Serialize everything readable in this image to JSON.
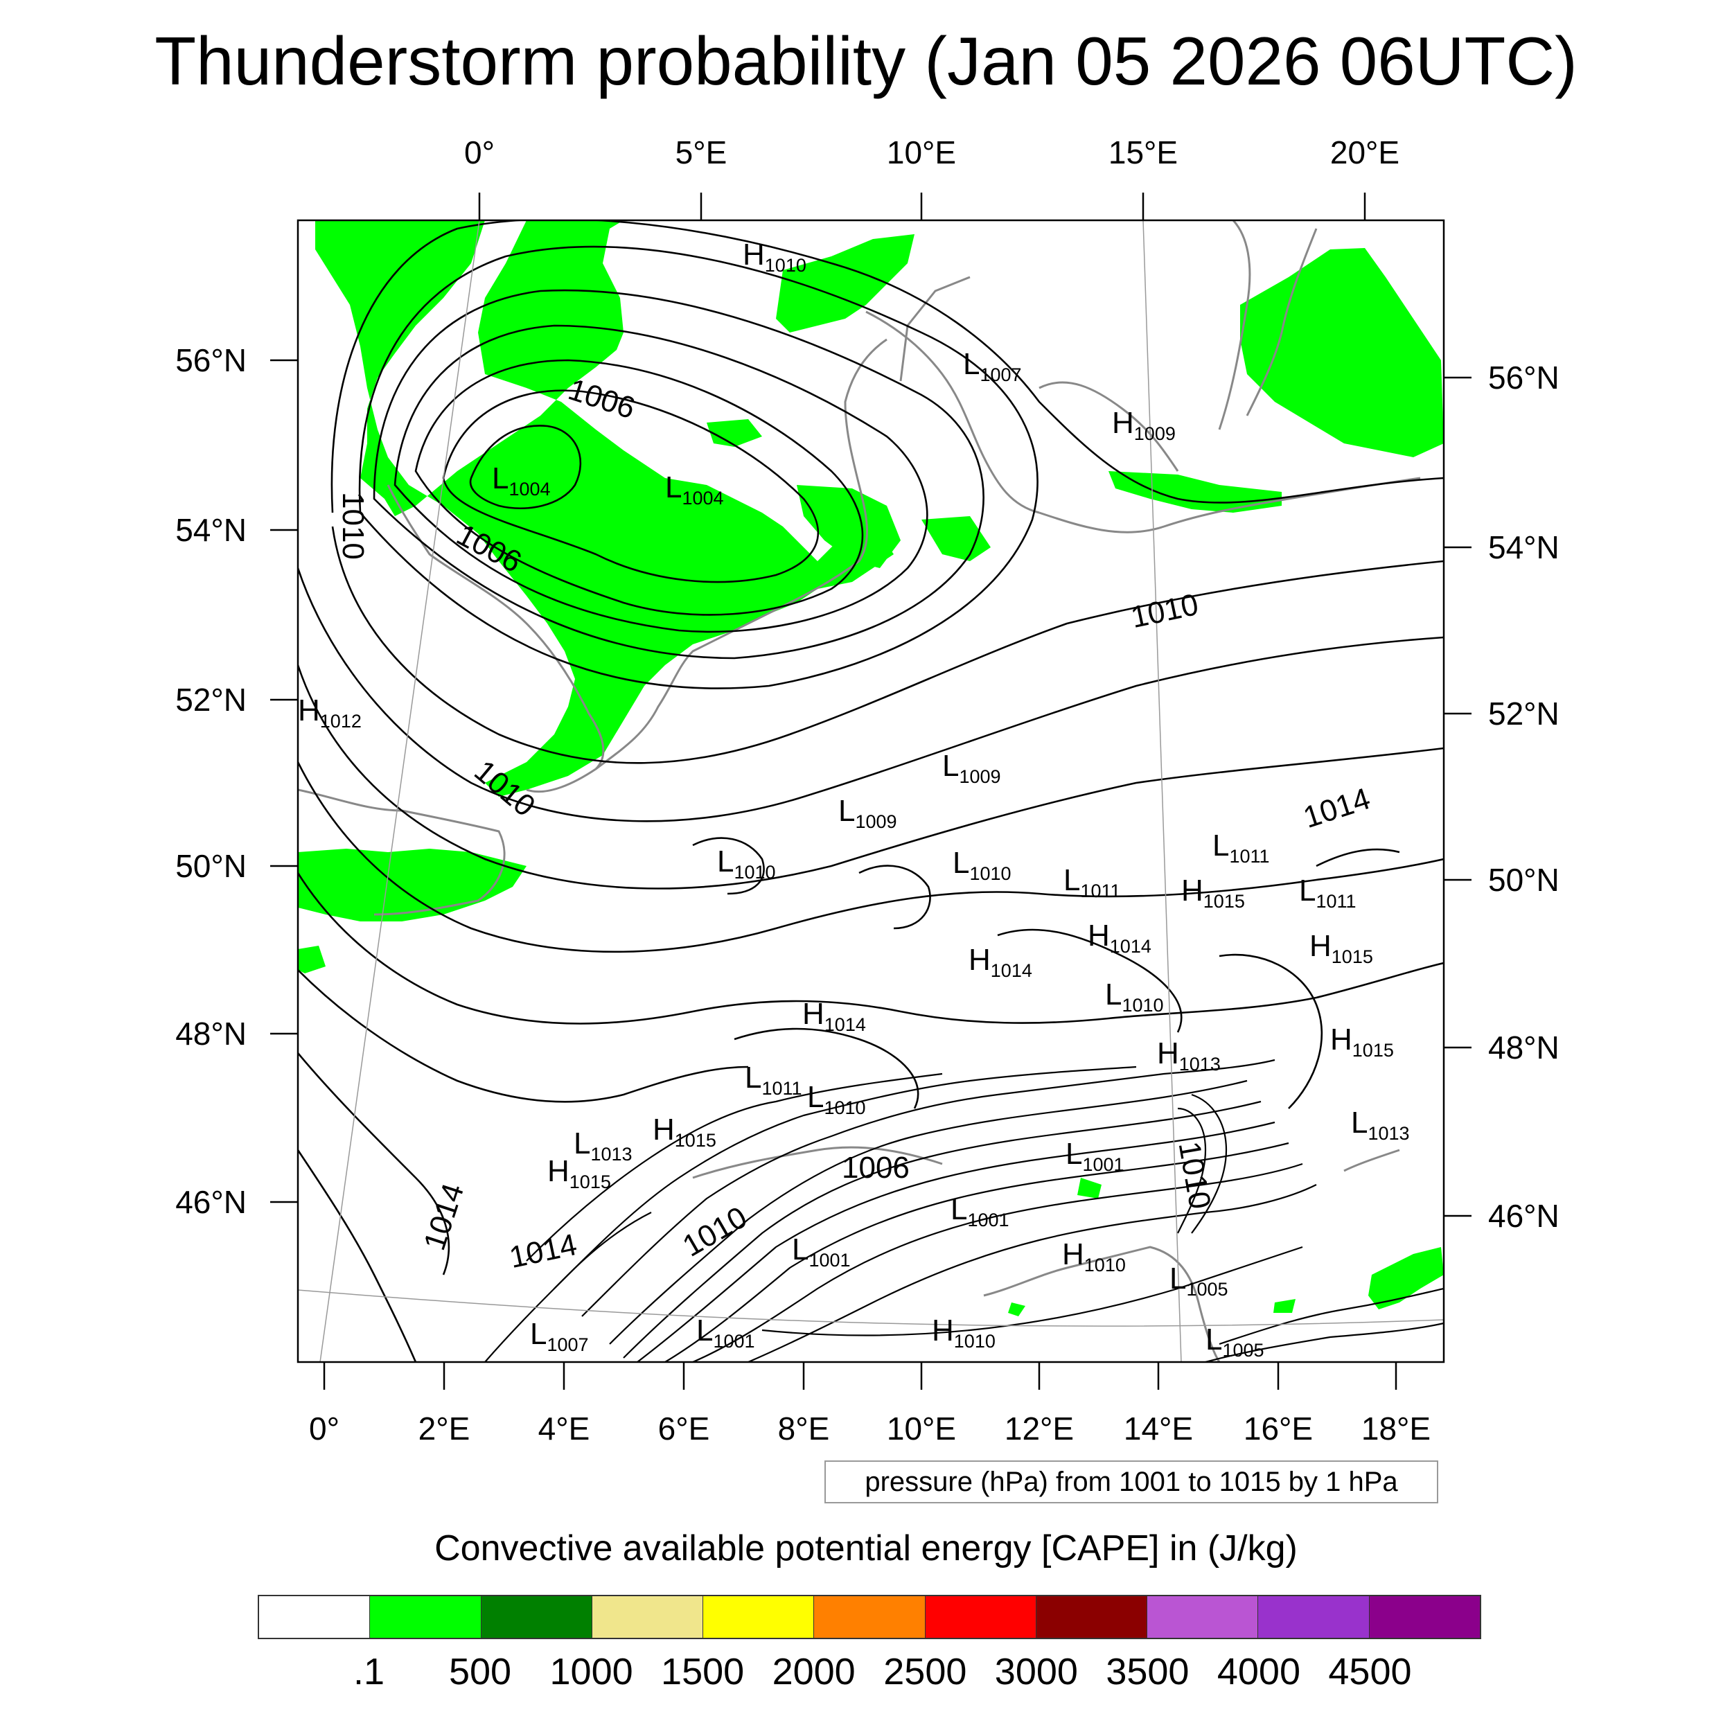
{
  "title": "Thunderstorm probability (Jan 05 2026 06UTC)",
  "top_lon_labels": [
    "0°",
    "5°E",
    "10°E",
    "15°E",
    "20°E"
  ],
  "left_lat_labels": [
    "56°N",
    "54°N",
    "52°N",
    "50°N",
    "48°N",
    "46°N"
  ],
  "right_lat_labels": [
    "56°N",
    "54°N",
    "52°N",
    "50°N",
    "48°N",
    "46°N"
  ],
  "bottom_lon_labels": [
    "0°",
    "2°E",
    "4°E",
    "6°E",
    "8°E",
    "10°E",
    "12°E",
    "14°E",
    "16°E",
    "18°E"
  ],
  "pressure_note": "pressure (hPa) from 1001 to 1015 by 1 hPa",
  "legend_title": "Convective available potential energy [CAPE] in (J/kg)",
  "colorbar": {
    "colors": [
      "#ffffff",
      "#00ff00",
      "#008000",
      "#f0e68c",
      "#ffff00",
      "#ff8000",
      "#ff0000",
      "#8b0000",
      "#ba55d3",
      "#9932cc",
      "#8b008b"
    ],
    "labels": [
      ".1",
      "500",
      "1000",
      "1500",
      "2000",
      "2500",
      "3000",
      "3500",
      "4000",
      "4500"
    ]
  },
  "pressure_centers": [
    {
      "type": "H",
      "value": "1010"
    },
    {
      "type": "L",
      "value": "1007"
    },
    {
      "type": "H",
      "value": "1009"
    },
    {
      "type": "L",
      "value": "1004"
    },
    {
      "type": "L",
      "value": "1004"
    },
    {
      "type": "H",
      "value": "1012"
    },
    {
      "type": "L",
      "value": "1009"
    },
    {
      "type": "L",
      "value": "1009"
    },
    {
      "type": "L",
      "value": "1010"
    },
    {
      "type": "L",
      "value": "1010"
    },
    {
      "type": "L",
      "value": "1011"
    },
    {
      "type": "L",
      "value": "1011"
    },
    {
      "type": "H",
      "value": "1015"
    },
    {
      "type": "L",
      "value": "1011"
    },
    {
      "type": "H",
      "value": "1014"
    },
    {
      "type": "H",
      "value": "1015"
    },
    {
      "type": "H",
      "value": "1014"
    },
    {
      "type": "L",
      "value": "1010"
    },
    {
      "type": "H",
      "value": "1014"
    },
    {
      "type": "H",
      "value": "1013"
    },
    {
      "type": "H",
      "value": "1015"
    },
    {
      "type": "L",
      "value": "1011"
    },
    {
      "type": "L",
      "value": "1010"
    },
    {
      "type": "H",
      "value": "1015"
    },
    {
      "type": "L",
      "value": "1013"
    },
    {
      "type": "H",
      "value": "1015"
    },
    {
      "type": "L",
      "value": "1013"
    },
    {
      "type": "L",
      "value": "1001"
    },
    {
      "type": "L",
      "value": "1001"
    },
    {
      "type": "L",
      "value": "1001"
    },
    {
      "type": "H",
      "value": "1010"
    },
    {
      "type": "L",
      "value": "1005"
    },
    {
      "type": "L",
      "value": "1007"
    },
    {
      "type": "L",
      "value": "1001"
    },
    {
      "type": "H",
      "value": "1010"
    },
    {
      "type": "L",
      "value": "1005"
    }
  ],
  "isobar_labels": [
    "1006",
    "1006",
    "1010",
    "1010",
    "1010",
    "1014",
    "1006",
    "1010",
    "1010",
    "1014",
    "1014"
  ]
}
